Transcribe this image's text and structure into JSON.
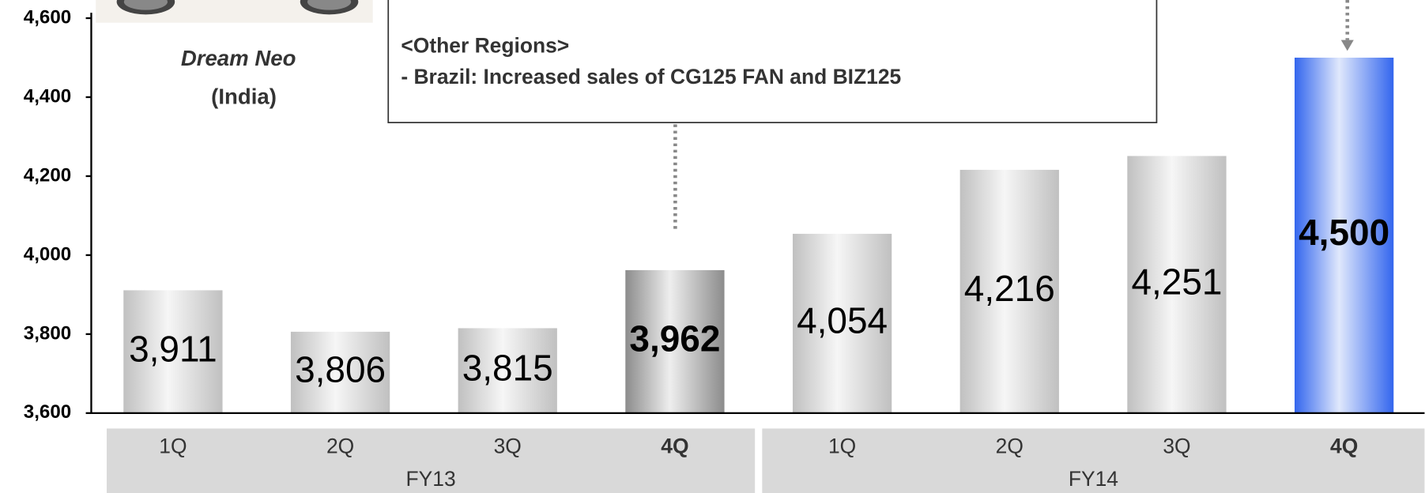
{
  "chart_data": {
    "type": "bar",
    "categories": [
      "1Q",
      "2Q",
      "3Q",
      "4Q",
      "1Q",
      "2Q",
      "3Q",
      "4Q"
    ],
    "groups": [
      "FY13",
      "FY14"
    ],
    "values": [
      3911,
      3806,
      3815,
      3962,
      4054,
      4216,
      4251,
      4500
    ],
    "value_labels": [
      "3,911",
      "3,806",
      "3,815",
      "3,962",
      "4,054",
      "4,216",
      "4,251",
      "4,500"
    ],
    "colors": [
      "#c0c0c0",
      "#c0c0c0",
      "#c0c0c0",
      "#8c8c8c",
      "#c0c0c0",
      "#c0c0c0",
      "#c0c0c0",
      "#3366ee"
    ],
    "highlight": [
      3,
      7
    ],
    "ylim": [
      3600,
      4600
    ],
    "yticks": [
      {
        "value": 3600,
        "label": "3,600"
      },
      {
        "value": 3800,
        "label": "3,800"
      },
      {
        "value": 4000,
        "label": "4,000"
      },
      {
        "value": 4200,
        "label": "4,200"
      },
      {
        "value": 4400,
        "label": "4,400"
      },
      {
        "value": 4600,
        "label": "4,600"
      }
    ],
    "annotations": [
      "<Other Regions>",
      "- Brazil: Increased sales of CG125 FAN and BIZ125"
    ],
    "image_caption": [
      "Dream Neo",
      "(India)"
    ]
  }
}
